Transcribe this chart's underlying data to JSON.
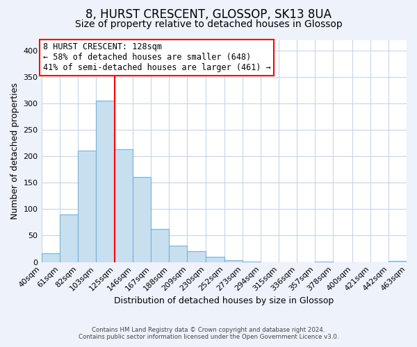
{
  "title": "8, HURST CRESCENT, GLOSSOP, SK13 8UA",
  "subtitle": "Size of property relative to detached houses in Glossop",
  "xlabel": "Distribution of detached houses by size in Glossop",
  "ylabel": "Number of detached properties",
  "footnote1": "Contains HM Land Registry data © Crown copyright and database right 2024.",
  "footnote2": "Contains public sector information licensed under the Open Government Licence v3.0.",
  "bin_edges": [
    40,
    61,
    82,
    103,
    125,
    146,
    167,
    188,
    209,
    230,
    252,
    273,
    294,
    315,
    336,
    357,
    378,
    400,
    421,
    442,
    463
  ],
  "bin_labels": [
    "40sqm",
    "61sqm",
    "82sqm",
    "103sqm",
    "125sqm",
    "146sqm",
    "167sqm",
    "188sqm",
    "209sqm",
    "230sqm",
    "252sqm",
    "273sqm",
    "294sqm",
    "315sqm",
    "336sqm",
    "357sqm",
    "378sqm",
    "400sqm",
    "421sqm",
    "442sqm",
    "463sqm"
  ],
  "counts": [
    17,
    90,
    211,
    305,
    213,
    161,
    63,
    31,
    20,
    10,
    4,
    1,
    0,
    0,
    0,
    1,
    0,
    0,
    0,
    2
  ],
  "bar_color": "#c8dff0",
  "bar_edge_color": "#7ab0d4",
  "property_line_x": 125,
  "property_line_color": "red",
  "annotation_title": "8 HURST CRESCENT: 128sqm",
  "annotation_line1": "← 58% of detached houses are smaller (648)",
  "annotation_line2": "41% of semi-detached houses are larger (461) →",
  "ylim": [
    0,
    420
  ],
  "yticks": [
    0,
    50,
    100,
    150,
    200,
    250,
    300,
    350,
    400
  ],
  "background_color": "#eef2fb",
  "plot_background": "#ffffff",
  "grid_color": "#c8d4e8",
  "title_fontsize": 12,
  "subtitle_fontsize": 10,
  "axis_fontsize": 9,
  "tick_fontsize": 8
}
